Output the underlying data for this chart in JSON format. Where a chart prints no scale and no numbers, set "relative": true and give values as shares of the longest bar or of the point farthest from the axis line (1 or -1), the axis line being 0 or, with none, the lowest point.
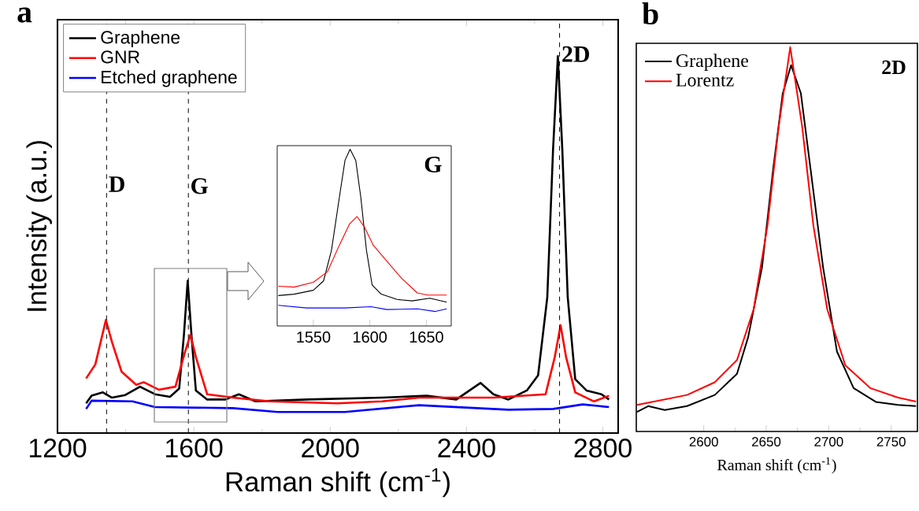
{
  "chart_data": [
    {
      "type": "line",
      "title": "a",
      "xlabel": "Raman shift (cm$^{-1}$)",
      "ylabel": "Intensity (a.u.)",
      "relative": true,
      "legend": "top left",
      "xlim": [
        1200,
        2845
      ],
      "xticks": [
        1200,
        1600,
        2000,
        2400,
        2800
      ],
      "series": [
        {
          "name": "Graphene",
          "color": "#000000",
          "x": [
            1284,
            1300,
            1333,
            1360,
            1399,
            1442,
            1486,
            1530,
            1557,
            1571,
            1582,
            1593,
            1606,
            1639,
            1693,
            1732,
            1781,
            1933,
            2152,
            2283,
            2370,
            2441,
            2479,
            2523,
            2577,
            2610,
            2637,
            2654,
            2668,
            2681,
            2697,
            2719,
            2752,
            2796,
            2818
          ],
          "values": [
            0.079,
            0.099,
            0.108,
            0.094,
            0.101,
            0.123,
            0.103,
            0.096,
            0.118,
            0.261,
            0.404,
            0.261,
            0.113,
            0.089,
            0.089,
            0.103,
            0.084,
            0.089,
            0.094,
            0.099,
            0.089,
            0.133,
            0.103,
            0.089,
            0.113,
            0.153,
            0.36,
            0.754,
            1.0,
            0.754,
            0.36,
            0.143,
            0.113,
            0.103,
            0.089
          ]
        },
        {
          "name": "GNR",
          "color": "#ff0000",
          "x": [
            1284,
            1311,
            1342,
            1360,
            1388,
            1431,
            1453,
            1497,
            1546,
            1573,
            1590,
            1606,
            1639,
            1715,
            1824,
            2021,
            2152,
            2261,
            2479,
            2632,
            2659,
            2676,
            2692,
            2719,
            2774,
            2818
          ],
          "values": [
            0.145,
            0.182,
            0.3,
            0.241,
            0.163,
            0.128,
            0.135,
            0.115,
            0.123,
            0.212,
            0.261,
            0.202,
            0.103,
            0.094,
            0.084,
            0.079,
            0.084,
            0.094,
            0.094,
            0.103,
            0.202,
            0.286,
            0.202,
            0.108,
            0.084,
            0.099
          ]
        },
        {
          "name": "Etched graphene",
          "color": "#0000ff",
          "x": [
            1284,
            1300,
            1420,
            1486,
            1715,
            1846,
            2043,
            2261,
            2523,
            2654,
            2741,
            2818
          ],
          "values": [
            0.064,
            0.086,
            0.084,
            0.069,
            0.066,
            0.056,
            0.056,
            0.074,
            0.062,
            0.064,
            0.076,
            0.069
          ]
        }
      ],
      "ref_lines": [
        {
          "axis": "x",
          "value": 1344,
          "line_style": "dashed"
        },
        {
          "axis": "x",
          "value": 1584,
          "line_style": "dashed"
        },
        {
          "axis": "x",
          "value": 2673,
          "line_style": "dashed"
        }
      ],
      "annotations": [
        {
          "text": "D",
          "x": 1344,
          "y": 0.64
        },
        {
          "text": "G",
          "x": 1584,
          "y": 0.635
        },
        {
          "text": "2D",
          "x": 2673,
          "y": 0.985
        }
      ]
    },
    {
      "type": "line",
      "relative": true,
      "xlim": [
        1518,
        1672
      ],
      "xticks": [
        1550,
        1600,
        1650
      ],
      "series": [
        {
          "color": "#000000",
          "x": [
            1519,
            1533,
            1550,
            1559,
            1566,
            1573,
            1578,
            1582.5,
            1587.5,
            1592,
            1597,
            1602,
            1610,
            1624,
            1637.5,
            1653,
            1668
          ],
          "values": [
            0.172,
            0.18,
            0.202,
            0.255,
            0.427,
            0.727,
            0.937,
            1.0,
            0.937,
            0.727,
            0.427,
            0.232,
            0.18,
            0.15,
            0.142,
            0.157,
            0.135
          ]
        },
        {
          "color": "#ff0000",
          "x": [
            1519,
            1533,
            1550,
            1562.5,
            1573,
            1582,
            1588.6,
            1595,
            1603,
            1615,
            1628,
            1642,
            1651,
            1668
          ],
          "values": [
            0.225,
            0.22,
            0.247,
            0.307,
            0.457,
            0.577,
            0.619,
            0.562,
            0.457,
            0.367,
            0.27,
            0.187,
            0.175,
            0.175
          ]
        },
        {
          "color": "#0000ff",
          "x": [
            1519,
            1544,
            1578,
            1601,
            1615,
            1642,
            1658,
            1668
          ],
          "values": [
            0.117,
            0.102,
            0.102,
            0.109,
            0.093,
            0.097,
            0.082,
            0.097
          ]
        }
      ],
      "annotations": [
        "G"
      ]
    },
    {
      "type": "line",
      "title": "b",
      "xlabel": "Raman shift (cm$^{-1}$)",
      "relative": true,
      "legend": "top left",
      "xlim": [
        2546,
        2771
      ],
      "xticks": [
        2600,
        2650,
        2700,
        2750
      ],
      "series": [
        {
          "name": "Graphene",
          "color": "#000000",
          "x": [
            2546.6,
            2555.5,
            2568.8,
            2586.6,
            2608.8,
            2626.6,
            2635.5,
            2646.6,
            2655.5,
            2663.2,
            2669.9,
            2677.7,
            2685.5,
            2695.5,
            2706.6,
            2719.9,
            2737.7,
            2755.5,
            2769.9
          ],
          "values": [
            0.051,
            0.066,
            0.056,
            0.066,
            0.095,
            0.15,
            0.245,
            0.427,
            0.682,
            0.88,
            0.953,
            0.88,
            0.682,
            0.427,
            0.208,
            0.113,
            0.077,
            0.069,
            0.066
          ]
        },
        {
          "name": "Lorentz",
          "color": "#ff0000",
          "x": [
            2546.6,
            2586.6,
            2608.8,
            2626.6,
            2639.9,
            2651,
            2659.9,
            2669.2,
            2678.8,
            2687.7,
            2698.8,
            2713.3,
            2733.2,
            2755.5,
            2769.9
          ],
          "values": [
            0.069,
            0.095,
            0.128,
            0.186,
            0.318,
            0.536,
            0.792,
            1.0,
            0.792,
            0.536,
            0.318,
            0.172,
            0.113,
            0.088,
            0.078
          ]
        }
      ],
      "annotations": [
        "2D"
      ]
    }
  ]
}
